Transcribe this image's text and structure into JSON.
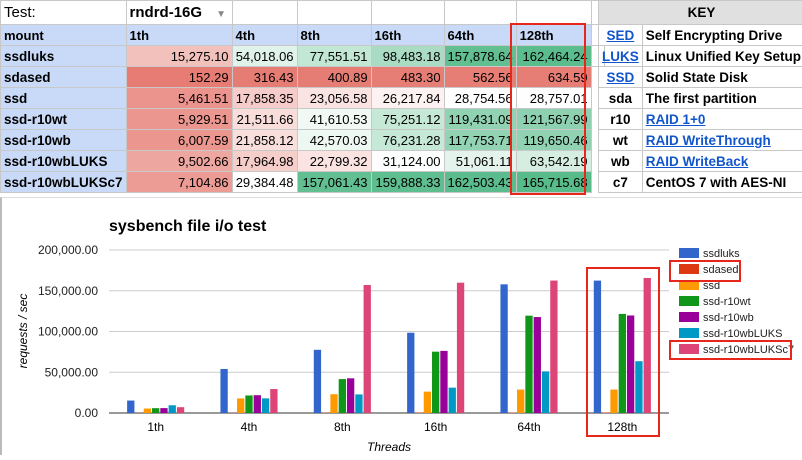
{
  "sheet": {
    "test_label": "Test:",
    "test_value": "rndrd-16G",
    "header": [
      "mount",
      "1th",
      "4th",
      "8th",
      "16th",
      "64th",
      "128th"
    ],
    "rows": [
      {
        "mount": "ssdluks",
        "values": [
          "15,275.10",
          "54,018.06",
          "77,551.51",
          "98,483.18",
          "157,878.64",
          "162,464.24"
        ]
      },
      {
        "mount": "sdased",
        "values": [
          "152.29",
          "316.43",
          "400.89",
          "483.30",
          "562.56",
          "634.59"
        ]
      },
      {
        "mount": "ssd",
        "values": [
          "5,461.51",
          "17,858.35",
          "23,056.58",
          "26,217.84",
          "28,754.56",
          "28,757.01"
        ]
      },
      {
        "mount": "ssd-r10wt",
        "values": [
          "5,929.51",
          "21,511.66",
          "41,610.53",
          "75,251.12",
          "119,431.09",
          "121,567.99"
        ]
      },
      {
        "mount": "ssd-r10wb",
        "values": [
          "6,007.59",
          "21,858.12",
          "42,570.03",
          "76,231.28",
          "117,753.71",
          "119,650.46"
        ]
      },
      {
        "mount": "ssd-r10wbLUKS",
        "values": [
          "9,502.66",
          "17,964.98",
          "22,799.32",
          "31,124.00",
          "51,061.11",
          "63,542.19"
        ]
      },
      {
        "mount": "ssd-r10wbLUKSc7",
        "values": [
          "7,104.86",
          "29,384.48",
          "157,061.43",
          "159,888.33",
          "162,503.43",
          "165,715.68"
        ]
      }
    ],
    "scale_colors": {
      "low": "#e67c73",
      "mid": "#ffffff",
      "high": "#57bb8a"
    },
    "highlight_color": "#e8271c"
  },
  "key": {
    "title": "KEY",
    "items": [
      {
        "abbr": "SED",
        "desc": "Self Encrypting Drive",
        "abbr_link": true,
        "desc_link": false
      },
      {
        "abbr": "LUKS",
        "desc": "Linux Unified Key Setup",
        "abbr_link": true,
        "desc_link": false
      },
      {
        "abbr": "SSD",
        "desc": "Solid State Disk",
        "abbr_link": true,
        "desc_link": false
      },
      {
        "abbr": "sda",
        "desc": "The first partition",
        "abbr_link": false,
        "desc_link": false
      },
      {
        "abbr": "r10",
        "desc": "RAID 1+0",
        "abbr_link": false,
        "desc_link": true
      },
      {
        "abbr": "wt",
        "desc": "RAID WriteThrough",
        "abbr_link": false,
        "desc_link": true
      },
      {
        "abbr": "wb",
        "desc": "RAID WriteBack",
        "abbr_link": false,
        "desc_link": true
      },
      {
        "abbr": "c7",
        "desc": "CentOS 7 with AES-NI",
        "abbr_link": false,
        "desc_link": false
      }
    ]
  },
  "chart_data": {
    "type": "bar",
    "title": "sysbench file i/o test",
    "xlabel": "Threads",
    "ylabel": "requests / sec",
    "ylim": [
      0,
      200000
    ],
    "yticks": [
      "0.00",
      "50,000.00",
      "100,000.00",
      "150,000.00",
      "200,000.00"
    ],
    "grid": true,
    "legend": "right",
    "categories": [
      "1th",
      "4th",
      "8th",
      "16th",
      "64th",
      "128th"
    ],
    "series": [
      {
        "name": "ssdluks",
        "color": "#3366cc",
        "values": [
          15275.1,
          54018.06,
          77551.51,
          98483.18,
          157878.64,
          162464.24
        ]
      },
      {
        "name": "sdased",
        "color": "#dc3912",
        "values": [
          152.29,
          316.43,
          400.89,
          483.3,
          562.56,
          634.59
        ]
      },
      {
        "name": "ssd",
        "color": "#ff9900",
        "values": [
          5461.51,
          17858.35,
          23056.58,
          26217.84,
          28754.56,
          28757.01
        ]
      },
      {
        "name": "ssd-r10wt",
        "color": "#109618",
        "values": [
          5929.51,
          21511.66,
          41610.53,
          75251.12,
          119431.09,
          121567.99
        ]
      },
      {
        "name": "ssd-r10wb",
        "color": "#990099",
        "values": [
          6007.59,
          21858.12,
          42570.03,
          76231.28,
          117753.71,
          119650.46
        ]
      },
      {
        "name": "ssd-r10wbLUKS",
        "color": "#0099c6",
        "values": [
          9502.66,
          17964.98,
          22799.32,
          31124.0,
          51061.11,
          63542.19
        ]
      },
      {
        "name": "ssd-r10wbLUKSc7",
        "color": "#dd4477",
        "values": [
          7104.86,
          29384.48,
          157061.43,
          159888.33,
          162503.43,
          165715.68
        ]
      }
    ]
  }
}
